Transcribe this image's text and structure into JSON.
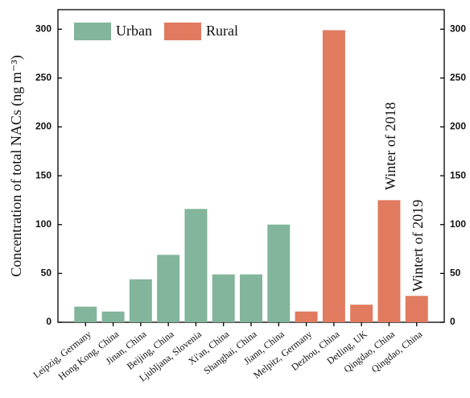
{
  "chart_data": {
    "type": "bar",
    "y_label": "Concentration of total NACs (ng m⁻³)",
    "categories": [
      "Leipzig, Germany",
      "Hong Kong, China",
      "Jinan, China",
      "Beijing, China",
      "Ljubljana, Slovenia",
      "Xi'an, China",
      "Shanghai, China",
      "Jiann, China",
      "Melpitz, Germany",
      "Dezhou, China",
      "Detling, UK",
      "Qingdao, China",
      "Qingdao, China"
    ],
    "series": [
      {
        "name": "Urban",
        "color": "#82b59b",
        "values": [
          16,
          11,
          44,
          69,
          116,
          49,
          49,
          100,
          null,
          null,
          null,
          null,
          null
        ]
      },
      {
        "name": "Rural",
        "color": "#e07b5f",
        "values": [
          null,
          null,
          null,
          null,
          null,
          null,
          null,
          null,
          11,
          299,
          18,
          125,
          27
        ]
      }
    ],
    "annotations": [
      "Winter of 2018",
      "Wintert  of 2019"
    ],
    "ylim": [
      0,
      320
    ],
    "yticks": [
      0,
      50,
      100,
      150,
      200,
      250,
      300
    ]
  }
}
